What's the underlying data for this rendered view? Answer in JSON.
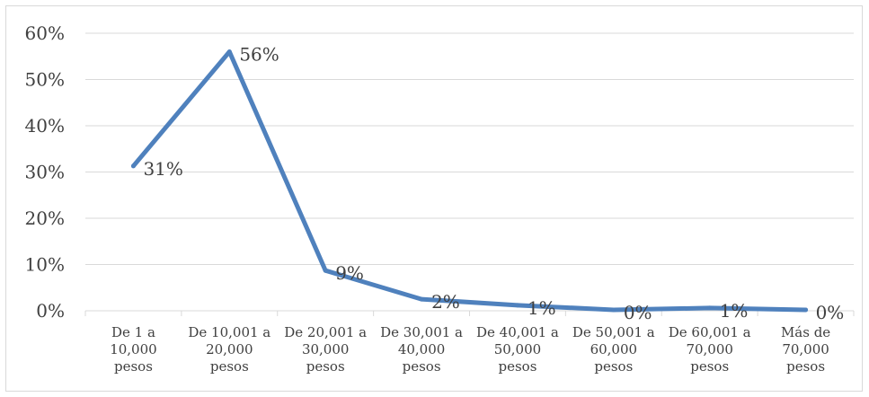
{
  "chart_data": {
    "type": "line",
    "categories": [
      [
        "De 1 a",
        "10,000",
        "pesos"
      ],
      [
        "De 10,001 a",
        "20,000",
        "pesos"
      ],
      [
        "De 20,001 a",
        "30,000",
        "pesos"
      ],
      [
        "De 30,001 a",
        "40,000",
        "pesos"
      ],
      [
        "De 40,001 a",
        "50,000",
        "pesos"
      ],
      [
        "De 50,001 a",
        "60,000",
        "pesos"
      ],
      [
        "De 60,001 a",
        "70,000",
        "pesos"
      ],
      [
        "Más de",
        "70,000",
        "pesos"
      ]
    ],
    "values": [
      31.3,
      56,
      8.7,
      2.5,
      1.2,
      0.2,
      0.6,
      0.2
    ],
    "data_labels": [
      "31%",
      "56%",
      "9%",
      "2%",
      "1%",
      "0%",
      "1%",
      "0%"
    ],
    "y_ticks": [
      "0%",
      "10%",
      "20%",
      "30%",
      "40%",
      "50%",
      "60%"
    ],
    "ylim": [
      0,
      60
    ],
    "grid": true,
    "line_color": "#4f81bd",
    "grid_color": "#d9d9d9"
  }
}
